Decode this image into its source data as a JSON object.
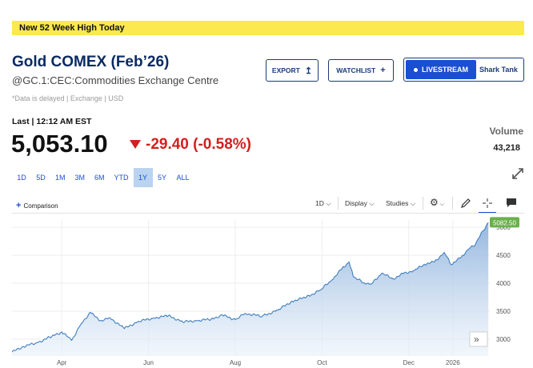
{
  "banner": {
    "text": "New 52 Week High Today"
  },
  "header": {
    "title": "Gold COMEX (Feb’26)",
    "subtitle": "@GC.1:CEC:Commodities Exchange Centre",
    "note": "*Data is delayed | Exchange | USD"
  },
  "actions": {
    "export_label": "EXPORT",
    "watchlist_label": "WATCHLIST",
    "livestream_label": "LIVESTREAM",
    "show_label": "Shark Tank"
  },
  "quote": {
    "last_label": "Last | 12:12 AM EST",
    "price": "5,053.10",
    "change": "-29.40 (-0.58%)",
    "volume_label": "Volume",
    "volume": "43,218",
    "change_color": "#d3201f"
  },
  "ranges": {
    "items": [
      "1D",
      "5D",
      "1M",
      "3M",
      "6M",
      "YTD",
      "1Y",
      "5Y",
      "ALL"
    ],
    "active": "1Y"
  },
  "chart_toolbar": {
    "comparison_label": "Comparison",
    "interval_label": "1D",
    "display_label": "Display",
    "studies_label": "Studies"
  },
  "chart_data": {
    "type": "area",
    "x_ticks": [
      "Apr",
      "Jun",
      "Aug",
      "Oct",
      "Dec",
      "2026"
    ],
    "y_ticks": [
      3000,
      3500,
      4000,
      4500,
      5000
    ],
    "ylim": [
      2700,
      5130
    ],
    "price_tag": "5082.50",
    "line_color": "#3f7fc0",
    "points": [
      [
        "2025-02-25",
        2770
      ],
      [
        "2025-03-05",
        2870
      ],
      [
        "2025-03-15",
        2940
      ],
      [
        "2025-03-25",
        3050
      ],
      [
        "2025-04-01",
        3130
      ],
      [
        "2025-04-08",
        2980
      ],
      [
        "2025-04-14",
        3250
      ],
      [
        "2025-04-21",
        3480
      ],
      [
        "2025-04-28",
        3330
      ],
      [
        "2025-05-05",
        3380
      ],
      [
        "2025-05-15",
        3190
      ],
      [
        "2025-05-25",
        3320
      ],
      [
        "2025-06-05",
        3380
      ],
      [
        "2025-06-15",
        3420
      ],
      [
        "2025-06-25",
        3310
      ],
      [
        "2025-07-05",
        3330
      ],
      [
        "2025-07-15",
        3360
      ],
      [
        "2025-07-23",
        3430
      ],
      [
        "2025-08-01",
        3350
      ],
      [
        "2025-08-08",
        3460
      ],
      [
        "2025-08-20",
        3410
      ],
      [
        "2025-08-31",
        3520
      ],
      [
        "2025-09-10",
        3680
      ],
      [
        "2025-09-20",
        3750
      ],
      [
        "2025-09-30",
        3880
      ],
      [
        "2025-10-08",
        4060
      ],
      [
        "2025-10-15",
        4260
      ],
      [
        "2025-10-20",
        4380
      ],
      [
        "2025-10-23",
        4120
      ],
      [
        "2025-10-30",
        4010
      ],
      [
        "2025-11-05",
        3990
      ],
      [
        "2025-11-12",
        4180
      ],
      [
        "2025-11-20",
        4080
      ],
      [
        "2025-11-27",
        4170
      ],
      [
        "2025-12-05",
        4230
      ],
      [
        "2025-12-12",
        4340
      ],
      [
        "2025-12-19",
        4380
      ],
      [
        "2025-12-26",
        4550
      ],
      [
        "2025-12-31",
        4330
      ],
      [
        "2026-01-07",
        4470
      ],
      [
        "2026-01-12",
        4610
      ],
      [
        "2026-01-17",
        4700
      ],
      [
        "2026-01-22",
        4930
      ],
      [
        "2026-01-26",
        5082.5
      ]
    ]
  }
}
